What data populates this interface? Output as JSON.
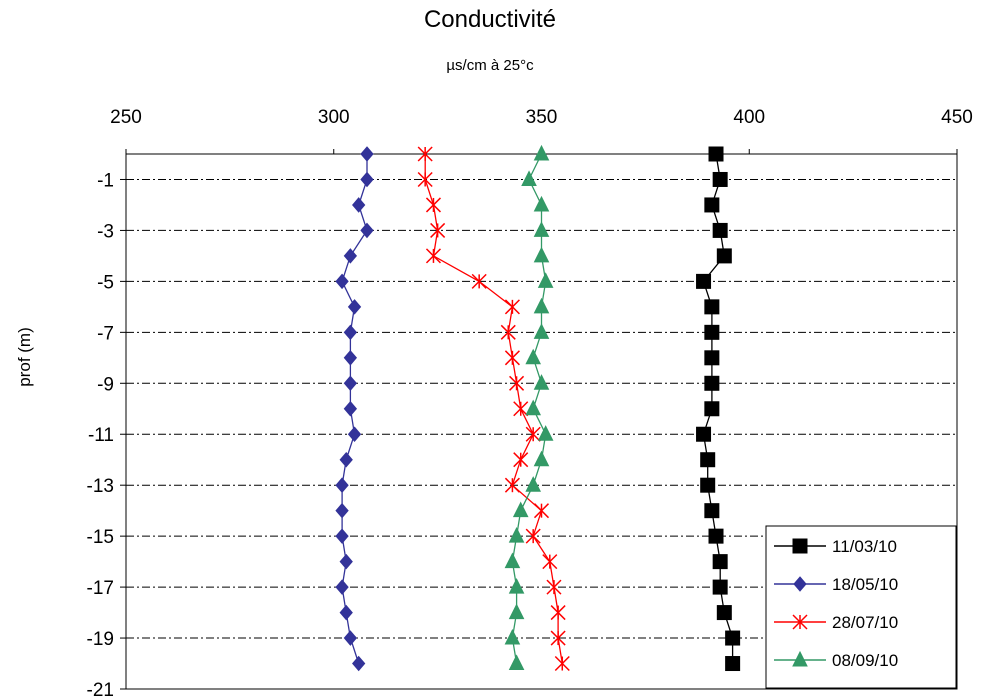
{
  "chart_data": {
    "type": "line",
    "title": "Conductivité",
    "subtitle": "µs/cm à 25°c",
    "xlabel": "",
    "ylabel": "prof (m)",
    "x_axis_position": "top",
    "xlim": [
      250,
      450
    ],
    "ylim": [
      -21,
      0
    ],
    "x_ticks": [
      "250",
      "300",
      "350",
      "400",
      "450"
    ],
    "y_ticks": [
      "-1",
      "-3",
      "-5",
      "-7",
      "-9",
      "-11",
      "-13",
      "-15",
      "-17",
      "-19",
      "-21"
    ],
    "grid": "horizontal dash-dot",
    "legend_position": "bottom-right",
    "y": [
      0,
      -1,
      -2,
      -3,
      -4,
      -5,
      -6,
      -7,
      -8,
      -9,
      -10,
      -11,
      -12,
      -13,
      -14,
      -15,
      -16,
      -17,
      -18,
      -19,
      -20
    ],
    "series": [
      {
        "name": "11/03/10",
        "color": "#000000",
        "marker": "square",
        "values": [
          392,
          393,
          391,
          393,
          394,
          389,
          391,
          391,
          391,
          391,
          391,
          389,
          390,
          390,
          391,
          392,
          393,
          393,
          394,
          396,
          396
        ]
      },
      {
        "name": "18/05/10",
        "color": "#333399",
        "marker": "diamond",
        "values": [
          308,
          308,
          306,
          308,
          304,
          302,
          305,
          304,
          304,
          304,
          304,
          305,
          303,
          302,
          302,
          302,
          303,
          302,
          303,
          304,
          306
        ]
      },
      {
        "name": "28/07/10",
        "color": "#ff0000",
        "marker": "star",
        "values": [
          322,
          322,
          324,
          325,
          324,
          335,
          343,
          342,
          343,
          344,
          345,
          348,
          345,
          343,
          350,
          348,
          352,
          353,
          354,
          354,
          355
        ]
      },
      {
        "name": "08/09/10",
        "color": "#339966",
        "marker": "triangle",
        "values": [
          350,
          347,
          350,
          350,
          350,
          351,
          350,
          350,
          348,
          350,
          348,
          351,
          350,
          348,
          345,
          344,
          343,
          344,
          344,
          343,
          344
        ]
      }
    ]
  }
}
